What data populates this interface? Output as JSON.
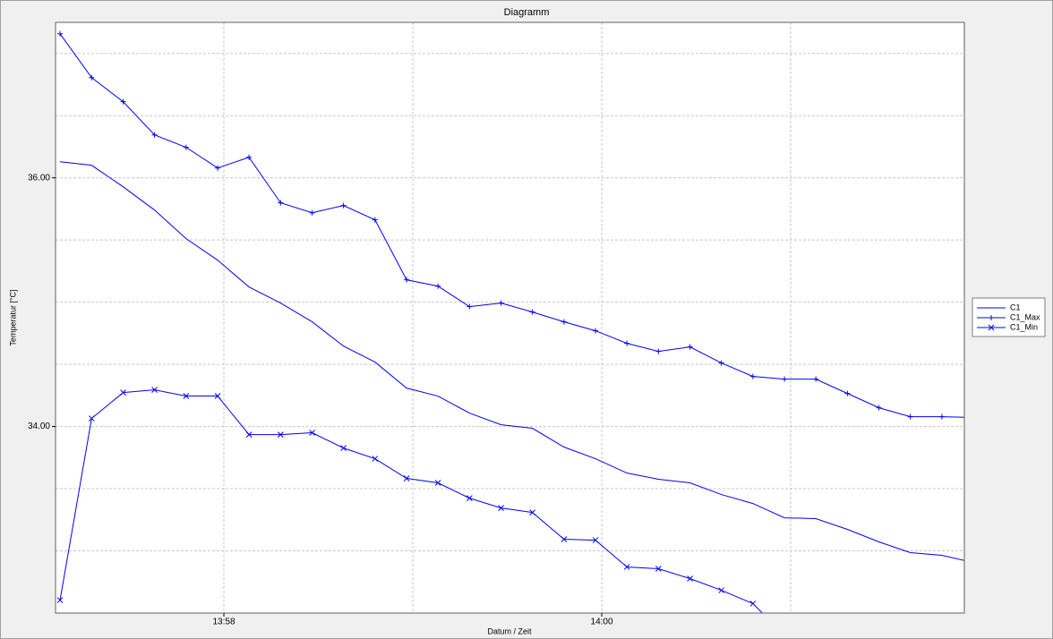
{
  "chart_data": {
    "type": "line",
    "title": "Diagramm",
    "x_label": "Datum / Zeit",
    "y_label": "Temperatur [°C]",
    "x": [
      837.133,
      837.3,
      837.467,
      837.633,
      837.8,
      837.967,
      838.133,
      838.3,
      838.467,
      838.633,
      838.8,
      838.967,
      839.133,
      839.3,
      839.467,
      839.633,
      839.8,
      839.967,
      840.133,
      840.3,
      840.467,
      840.633,
      840.8,
      840.967,
      841.133,
      841.3,
      841.467,
      841.633,
      841.8,
      841.967
    ],
    "series": [
      {
        "name": "C1",
        "color": "#0000ff",
        "marker": "none",
        "values": [
          36.129,
          36.101,
          35.928,
          35.741,
          35.511,
          35.338,
          35.122,
          34.993,
          34.842,
          34.647,
          34.518,
          34.309,
          34.245,
          34.108,
          34.014,
          33.986,
          33.835,
          33.741,
          33.626,
          33.576,
          33.547,
          33.453,
          33.381,
          33.266,
          33.259,
          33.173,
          33.072,
          32.986,
          32.964,
          32.906
        ]
      },
      {
        "name": "C1_Max",
        "color": "#0000ff",
        "marker": "plus",
        "values": [
          37.158,
          36.806,
          36.612,
          36.345,
          36.245,
          36.079,
          36.165,
          35.799,
          35.719,
          35.777,
          35.662,
          35.18,
          35.129,
          34.964,
          34.993,
          34.921,
          34.842,
          34.77,
          34.669,
          34.604,
          34.64,
          34.511,
          34.403,
          34.381,
          34.381,
          34.266,
          34.151,
          34.079,
          34.079,
          34.072
        ]
      },
      {
        "name": "C1_Min",
        "color": "#0000ff",
        "marker": "cross",
        "values": [
          32.604,
          34.065,
          34.273,
          34.295,
          34.245,
          34.245,
          33.935,
          33.935,
          33.95,
          33.827,
          33.741,
          33.583,
          33.547,
          33.424,
          33.345,
          33.309,
          33.094,
          33.086,
          32.871,
          32.856,
          32.777,
          32.683,
          32.576,
          32.32,
          null,
          null,
          null,
          null,
          null,
          null
        ]
      }
    ],
    "xlim": [
      837.109,
      841.919
    ],
    "ylim": [
      32.5,
      37.25
    ],
    "xticks": [
      {
        "value": 838,
        "label": "13:58"
      },
      {
        "value": 840,
        "label": "14:00"
      }
    ],
    "yticks": [
      {
        "value": 34,
        "label": "34.00"
      },
      {
        "value": 36,
        "label": "36.00"
      }
    ],
    "x_gridlines": [
      838,
      839,
      840,
      841
    ],
    "y_gridlines": [
      33,
      33.5,
      34,
      34.5,
      35,
      35.5,
      36,
      36.5,
      37
    ],
    "legend": "right"
  }
}
